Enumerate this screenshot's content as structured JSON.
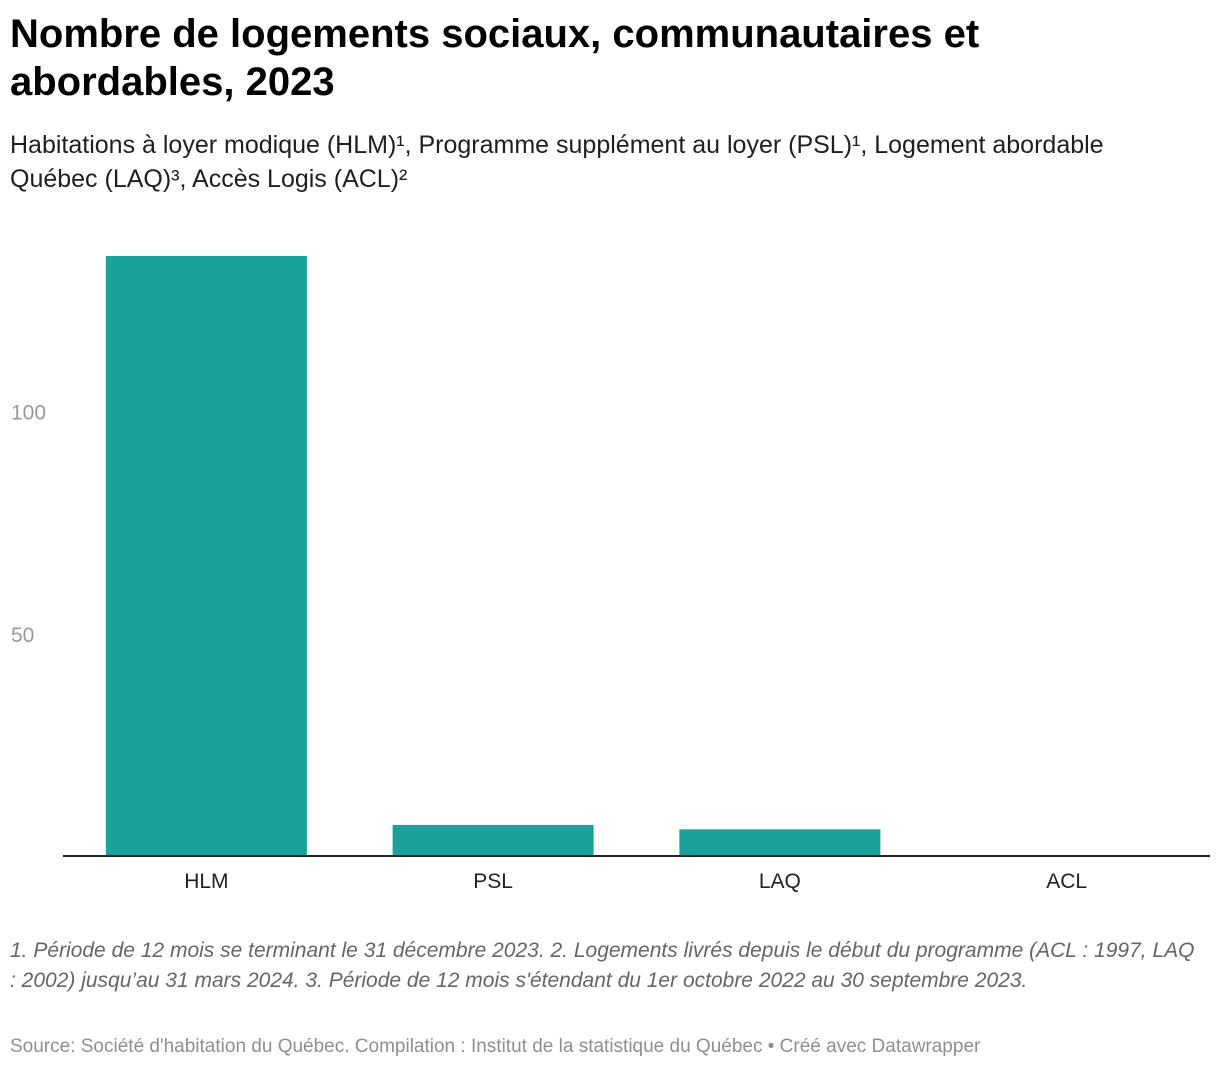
{
  "chart_data": {
    "type": "bar",
    "title": "Nombre de logements sociaux, communautaires et abordables, 2023",
    "subtitle": "Habitations à loyer modique (HLM)¹, Programme supplément au loyer (PSL)¹, Logement abordable Québec (LAQ)³, Accès Logis (ACL)²",
    "categories": [
      "HLM",
      "PSL",
      "LAQ",
      "ACL"
    ],
    "values": [
      135,
      7,
      6,
      0
    ],
    "yticks": [
      {
        "value": 50,
        "label": "50"
      },
      {
        "value": 100,
        "label": "100"
      }
    ],
    "ylim": [
      0,
      135
    ],
    "xlabel": "",
    "ylabel": "",
    "bar_color": "#1aa19b",
    "baseline_color": "#222222",
    "notes": "1. Période de 12 mois se terminant le 31 décembre 2023. 2. Logements livrés depuis le début du programme (ACL : 1997, LAQ : 2002) jusqu’au 31 mars 2024. 3. Période de 12 mois s'étendant du 1er octobre 2022 au 30 septembre 2023.",
    "source": "Source: Société d'habitation du Québec. Compilation : Institut de la statistique du Québec • Créé avec Datawrapper"
  }
}
